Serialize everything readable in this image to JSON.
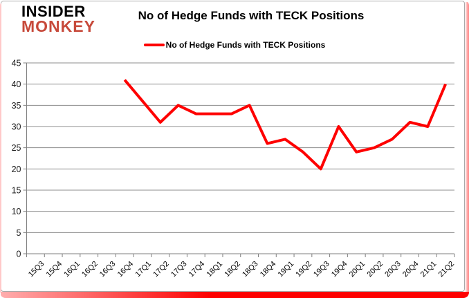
{
  "brand": {
    "line1": "INSIDER",
    "line2": "MONKEY"
  },
  "header": {
    "title": "No of Hedge Funds with TECK Positions"
  },
  "legend": {
    "label": "No of Hedge Funds with TECK Positions"
  },
  "colors": {
    "line": "#fe0000",
    "grid": "#8c8c8c",
    "axis": "#7f7f7f",
    "tick_text": "#1a1a1a",
    "brand_red": "#c7493a",
    "frame_red": "#fe0000"
  },
  "chart_data": {
    "type": "line",
    "title": "No of Hedge Funds with TECK Positions",
    "categories": [
      "15Q3",
      "15Q4",
      "16Q1",
      "16Q2",
      "16Q3",
      "16Q4",
      "17Q1",
      "17Q2",
      "17Q3",
      "17Q4",
      "18Q1",
      "18Q2",
      "18Q3",
      "18Q4",
      "19Q1",
      "19Q2",
      "19Q3",
      "19Q4",
      "20Q1",
      "20Q2",
      "20Q3",
      "20Q4",
      "21Q1",
      "21Q2"
    ],
    "series": [
      {
        "name": "No of Hedge Funds with TECK Positions",
        "color": "#fe0000",
        "values": [
          null,
          null,
          null,
          null,
          null,
          41,
          36,
          31,
          35,
          33,
          33,
          33,
          35,
          26,
          27,
          24,
          20,
          30,
          24,
          25,
          27,
          31,
          30,
          40
        ]
      }
    ],
    "ylim": [
      0,
      45
    ],
    "yticks": [
      0,
      5,
      10,
      15,
      20,
      25,
      30,
      35,
      40,
      45
    ],
    "xlabel": "",
    "ylabel": "",
    "grid": true,
    "legend_position": "top-center"
  }
}
